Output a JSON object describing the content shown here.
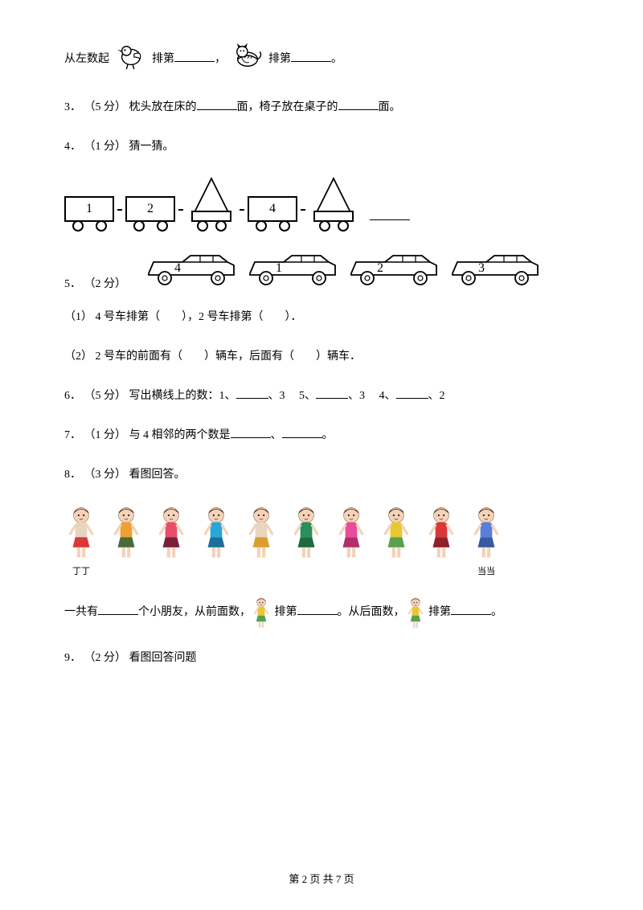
{
  "q2": {
    "prefix": "从左数起",
    "mid1": "排第",
    "comma": "，",
    "mid2": "排第",
    "period": "。"
  },
  "q3": {
    "num": "3．",
    "points": "（5 分）",
    "t1": " 枕头放在床的",
    "t2": "面，椅子放在桌子的",
    "t3": "面。"
  },
  "q4": {
    "num": "4．",
    "points": "（1 分）",
    "t": " 猜一猜。",
    "train": [
      "1",
      "2",
      "",
      "4",
      ""
    ]
  },
  "q5": {
    "num": "5．",
    "points": "（2 分）",
    "cars": [
      "4",
      "1",
      "2",
      "3"
    ],
    "s1a": "（1） 4 号车排第（",
    "s1b": "），2 号车排第（",
    "s1c": "）．",
    "s2a": "（2） 2 号车的前面有（",
    "s2b": "）辆车，后面有（",
    "s2c": "）辆车．"
  },
  "q6": {
    "num": "6．",
    "points": "（5 分）",
    "t": " 写出横线上的数：1、",
    "g1": "、3     5、",
    "g2": "、3     4、",
    "g3": "、2"
  },
  "q7": {
    "num": "7．",
    "points": "（1 分）",
    "t1": " 与 4 相邻的两个数是",
    "sep": "、",
    "t2": "。"
  },
  "q8": {
    "num": "8．",
    "points": "（3 分）",
    "t": " 看图回答。",
    "label_left": "丁丁",
    "label_right": "当当",
    "kids_colors": [
      {
        "hair": "#3b2b20",
        "shirt": "#e8d5c0",
        "skirt": "#d93838"
      },
      {
        "hair": "#2b1c12",
        "shirt": "#f0a030",
        "skirt": "#4a6b3a"
      },
      {
        "hair": "#3b2b20",
        "shirt": "#e84c6a",
        "skirt": "#7a1f3a"
      },
      {
        "hair": "#2b1c12",
        "shirt": "#2aa5d8",
        "skirt": "#1f6f9a"
      },
      {
        "hair": "#3b2b20",
        "shirt": "#e8d5c0",
        "skirt": "#d9a030"
      },
      {
        "hair": "#2b1c12",
        "shirt": "#2a8f5a",
        "skirt": "#1f6b3f"
      },
      {
        "hair": "#3b2b20",
        "shirt": "#e84c9a",
        "skirt": "#b02f6a"
      },
      {
        "hair": "#2b1c12",
        "shirt": "#e8c830",
        "skirt": "#5aa050"
      },
      {
        "hair": "#3b2b20",
        "shirt": "#d93838",
        "skirt": "#8f1f2a"
      },
      {
        "hair": "#2b1c12",
        "shirt": "#5a7fd8",
        "skirt": "#3a5a9f"
      }
    ],
    "line2a": "一共有",
    "line2b": "个小朋友，从前面数，",
    "line2c": "排第",
    "line2d": "。从后面数，",
    "line2e": "排第",
    "line2f": "。"
  },
  "q9": {
    "num": "9．",
    "points": "（2 分）",
    "t": " 看图回答问题"
  },
  "footer": {
    "text": "第 2 页 共 7 页"
  }
}
